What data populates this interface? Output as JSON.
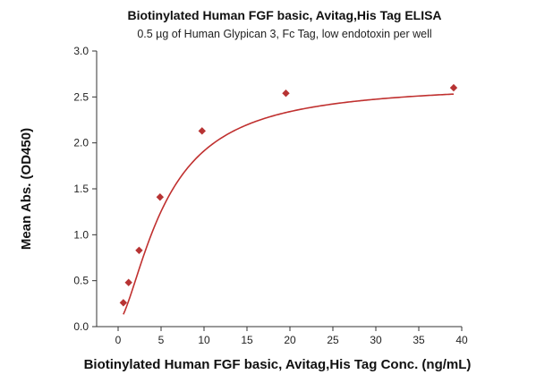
{
  "chart_data": {
    "type": "scatter",
    "title": "Biotinylated Human FGF basic, Avitag,His Tag ELISA",
    "subtitle": "0.5 µg of Human Glypican 3, Fc Tag, low endotoxin per well",
    "xlabel": "Biotinylated Human FGF basic, Avitag,His Tag Conc. (ng/mL)",
    "ylabel": "Mean Abs. (OD450)",
    "xlim": [
      -2.5,
      40
    ],
    "ylim": [
      0,
      3.0
    ],
    "x_ticks": [
      0,
      5,
      10,
      15,
      20,
      25,
      30,
      35,
      40
    ],
    "y_ticks": [
      0.0,
      0.5,
      1.0,
      1.5,
      2.0,
      2.5,
      3.0
    ],
    "y_tick_labels": [
      "0.0",
      "0.5",
      "1.0",
      "1.5",
      "2.0",
      "2.5",
      "3.0"
    ],
    "grid": false,
    "series": [
      {
        "marker": "diamond",
        "color": "#b73333",
        "x": [
          0.61,
          1.22,
          2.44,
          4.88,
          9.77,
          19.53,
          39.06
        ],
        "y": [
          0.26,
          0.48,
          0.83,
          1.41,
          2.13,
          2.54,
          2.6
        ]
      }
    ],
    "fit_curve": {
      "color": "#c0302f",
      "bottom": 0.05,
      "top": 2.65,
      "ec50": 5.5,
      "hill": 1.55
    }
  }
}
